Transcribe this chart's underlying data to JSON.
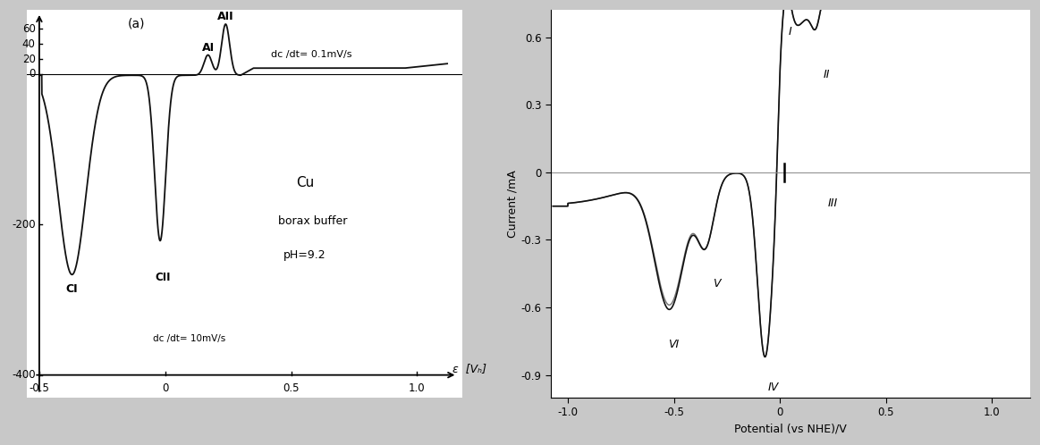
{
  "left_panel": {
    "label": "(a)",
    "xlabel": "ε  [Vₕ]",
    "xlim": [
      -0.55,
      1.18
    ],
    "ylim": [
      -430,
      85
    ],
    "annotation_top": "dc /dt= 0.1mV/s",
    "annotation_bot": "dc /dt= 10mV/s",
    "text_cu": "Cu",
    "text_borax": "borax buffer",
    "text_ph": "pH=9.2",
    "bg_color": "#ffffff",
    "line_color": "#111111"
  },
  "right_panel": {
    "xlabel": "Potential (vs NHE)/V",
    "ylabel": "Current /mA",
    "xlim": [
      -1.08,
      1.18
    ],
    "ylim": [
      -1.0,
      0.72
    ],
    "yticks": [
      -0.9,
      -0.6,
      -0.3,
      0.0,
      0.3,
      0.6
    ],
    "xticks": [
      -1.0,
      -0.5,
      0.0,
      0.5,
      1.0
    ],
    "bg_color": "#ffffff",
    "line_color": "#111111"
  },
  "fig_bg": "#c8c8c8"
}
